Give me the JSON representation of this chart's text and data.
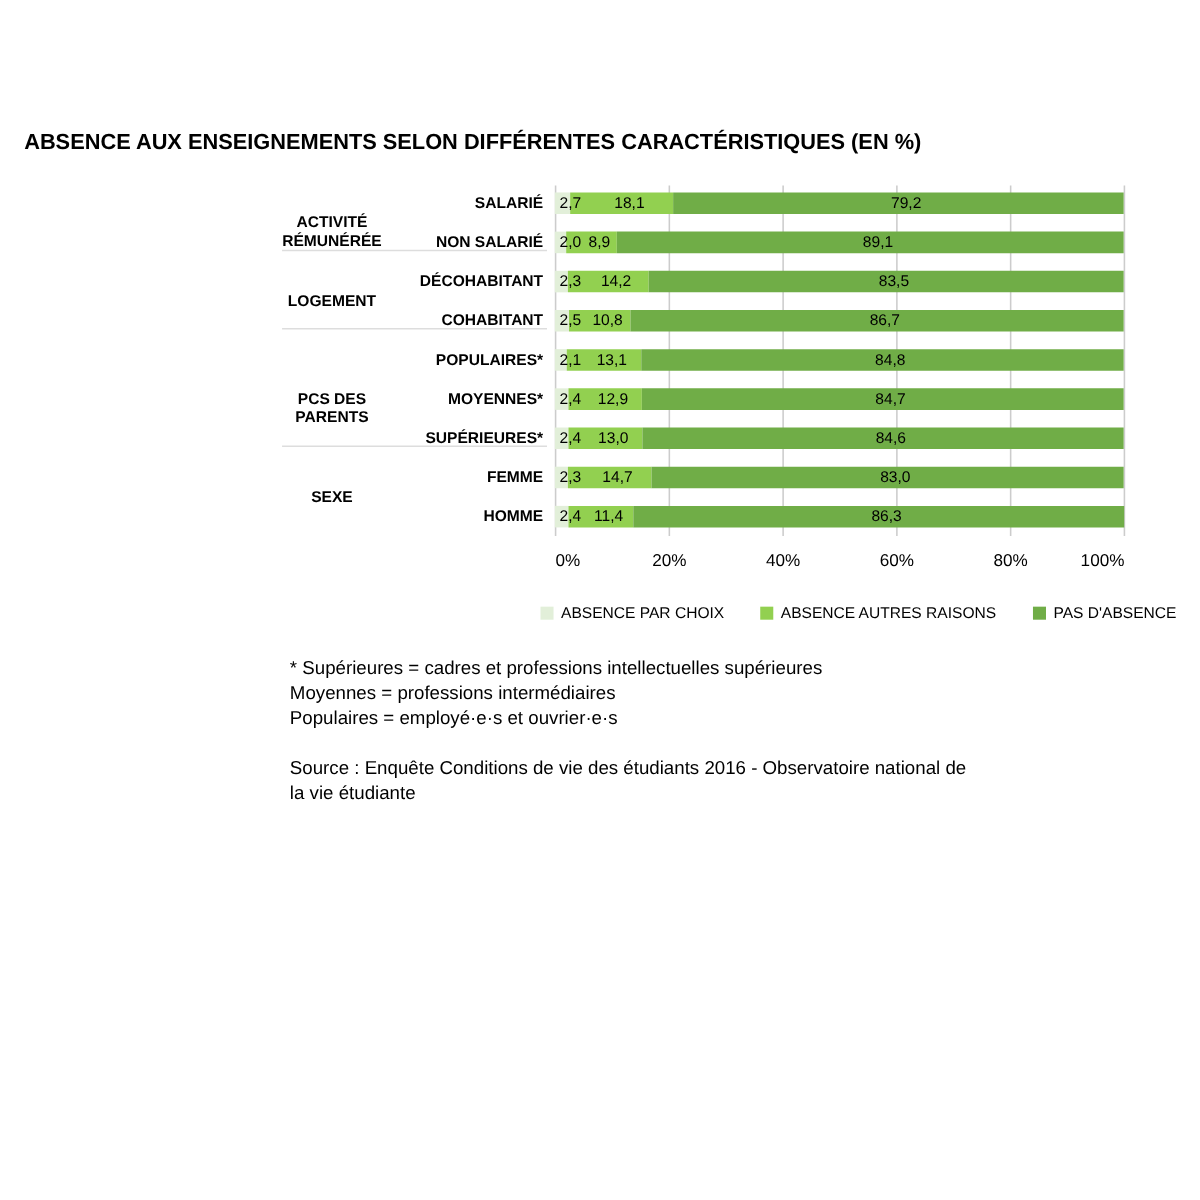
{
  "chart_data": {
    "type": "bar",
    "orientation": "horizontal",
    "stacked": true,
    "title": "ABSENCE AUX ENSEIGNEMENTS SELON DIFFÉRENTES CARACTÉRISTIQUES (EN %)",
    "categories": [
      "SALARIÉ",
      "NON SALARIÉ",
      "DÉCOHABITANT",
      "COHABITANT",
      "POPULAIRES*",
      "MOYENNES*",
      "SUPÉRIEURES*",
      "FEMME",
      "HOMME"
    ],
    "series": [
      {
        "name": "ABSENCE PAR CHOIX",
        "color": "#e2efd9",
        "values": [
          2.7,
          2.0,
          2.3,
          2.5,
          2.1,
          2.4,
          2.4,
          2.3,
          2.4
        ],
        "value_labels": [
          "2,7",
          "2,0",
          "2,3",
          "2,5",
          "2,1",
          "2,4",
          "2,4",
          "2,3",
          "2,4"
        ]
      },
      {
        "name": "ABSENCE AUTRES RAISONS",
        "color": "#92d050",
        "values": [
          18.1,
          8.9,
          14.2,
          10.8,
          13.1,
          12.9,
          13.0,
          14.7,
          11.4
        ],
        "value_labels": [
          "18,1",
          "8,9",
          "14,2",
          "10,8",
          "13,1",
          "12,9",
          "13,0",
          "14,7",
          "11,4"
        ]
      },
      {
        "name": "PAS D'ABSENCE",
        "color": "#70ad47",
        "values": [
          79.2,
          89.1,
          83.5,
          86.7,
          84.8,
          84.7,
          84.6,
          83.0,
          86.3
        ],
        "value_labels": [
          "79,2",
          "89,1",
          "83,5",
          "86,7",
          "84,8",
          "84,7",
          "84,6",
          "83,0",
          "86,3"
        ]
      }
    ],
    "xlim": [
      0,
      100
    ],
    "xticks": [
      {
        "value": 0,
        "label": "0%"
      },
      {
        "value": 20,
        "label": "20%"
      },
      {
        "value": 40,
        "label": "40%"
      },
      {
        "value": 60,
        "label": "60%"
      },
      {
        "value": 80,
        "label": "80%"
      },
      {
        "value": 100,
        "label": "100%"
      }
    ],
    "grid": "x",
    "legend": "bottom",
    "annotations": [
      "ACTIVITÉ\nRÉMUNÉRÉE",
      "LOGEMENT",
      "PCS DES\nPARENTS",
      "SEXE",
      "* Supérieures = cadres et professions intellectuelles supérieures",
      "Moyennes = professions intermédiaires",
      "Populaires = employé·e·s et ouvrier·e·s",
      "Source : Enquête Conditions de vie des étudiants 2016 - Observatoire national de la vie étudiante"
    ]
  }
}
